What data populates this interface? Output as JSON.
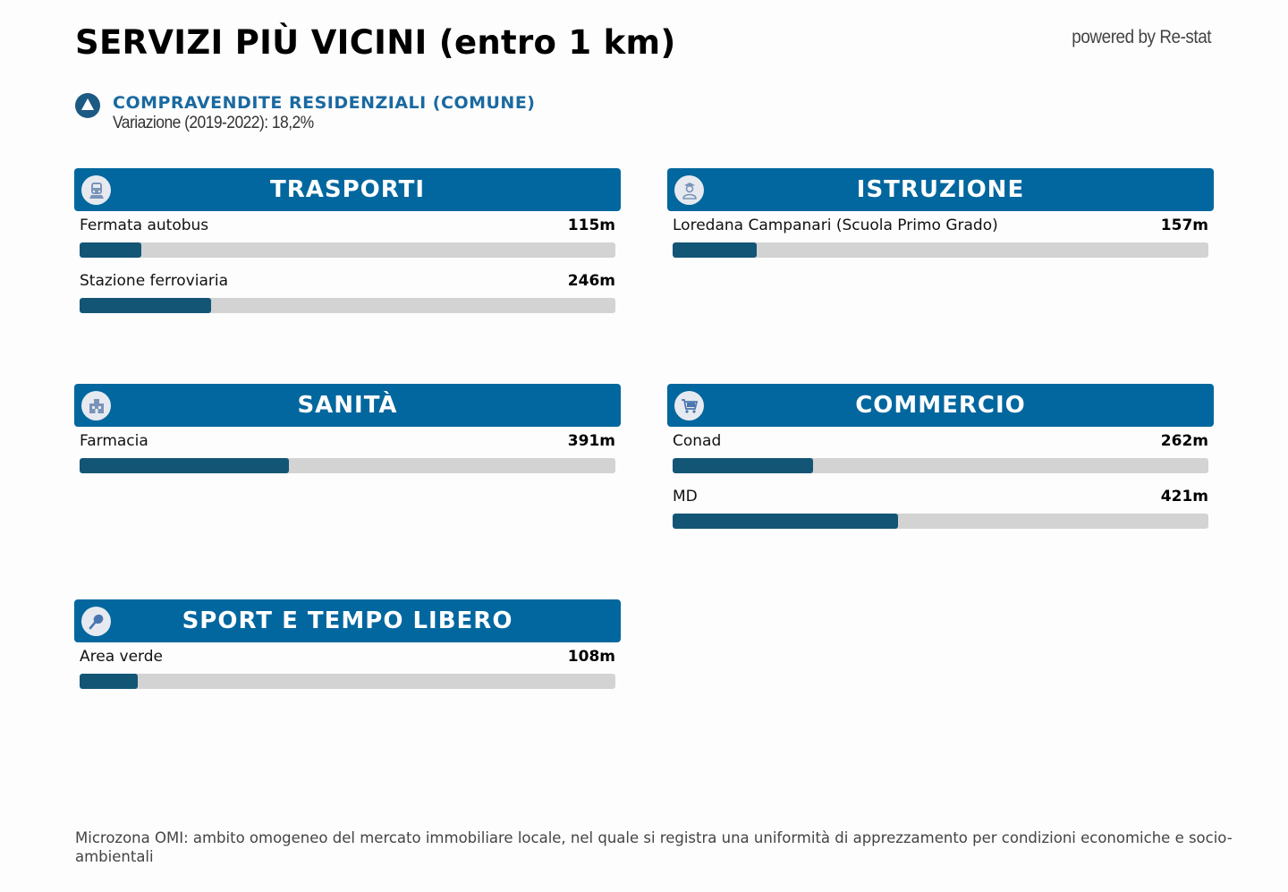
{
  "header": {
    "title": "SERVIZI PIÙ VICINI (entro 1 km)",
    "powered_by": "powered by Re-stat"
  },
  "kpi": {
    "icon": "triangle-up-icon",
    "title": "COMPRAVENDITE RESIDENZIALI (COMUNE)",
    "subtitle": "Variazione (2019-2022): 18,2%"
  },
  "colors": {
    "header_bg": "#02679e",
    "bar_fill": "#135575",
    "bar_track": "#d3d3d3",
    "kpi_accent": "#1a69a0"
  },
  "scale_max_m": 1000,
  "sections": {
    "trasporti": {
      "title": "TRASPORTI",
      "icon": "train-icon",
      "items": [
        {
          "name": "Fermata autobus",
          "value": "115m",
          "meters": 115
        },
        {
          "name": "Stazione ferroviaria",
          "value": "246m",
          "meters": 246
        }
      ]
    },
    "istruzione": {
      "title": "ISTRUZIONE",
      "icon": "student-icon",
      "items": [
        {
          "name": "Loredana Campanari (Scuola Primo Grado)",
          "value": "157m",
          "meters": 157
        }
      ]
    },
    "sanita": {
      "title": "SANITÀ",
      "icon": "hospital-icon",
      "items": [
        {
          "name": "Farmacia",
          "value": "391m",
          "meters": 391
        }
      ]
    },
    "commercio": {
      "title": "COMMERCIO",
      "icon": "shopping-cart-icon",
      "items": [
        {
          "name": "Conad",
          "value": "262m",
          "meters": 262
        },
        {
          "name": "MD",
          "value": "421m",
          "meters": 421
        }
      ]
    },
    "sport": {
      "title": "SPORT E TEMPO LIBERO",
      "icon": "tennis-racket-icon",
      "items": [
        {
          "name": "Area verde",
          "value": "108m",
          "meters": 108
        }
      ]
    }
  },
  "footer": {
    "note": "Microzona OMI: ambito omogeneo del mercato immobiliare locale, nel quale si registra una uniformità di apprezzamento per condizioni economiche e socio-ambientali"
  }
}
